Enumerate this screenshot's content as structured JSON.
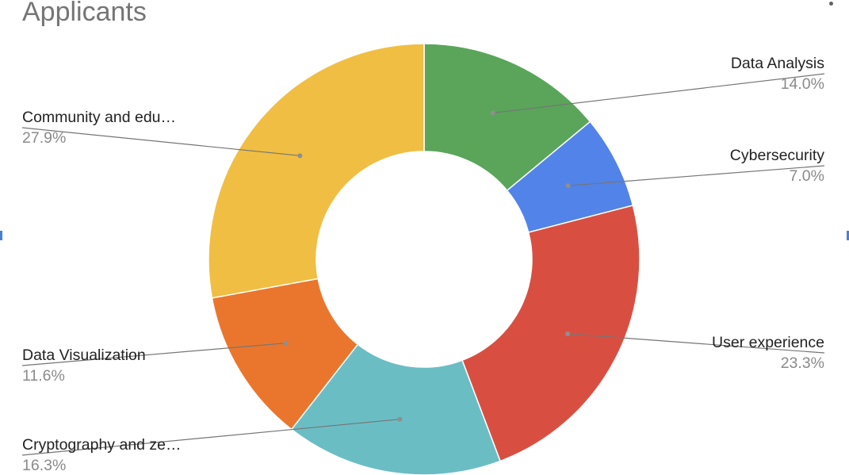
{
  "chart_data": {
    "type": "pie",
    "donut": true,
    "title": "Applicants",
    "unit": "%",
    "series": [
      {
        "name": "Data Analysis",
        "value": 14.0,
        "label": "Data Analysis",
        "value_text": "14.0%",
        "color": "#5aa55a"
      },
      {
        "name": "Cybersecurity",
        "value": 7.0,
        "label": "Cybersecurity",
        "value_text": "7.0%",
        "color": "#5283e8"
      },
      {
        "name": "User experience",
        "value": 23.3,
        "label": "User experience",
        "value_text": "23.3%",
        "color": "#d84f42"
      },
      {
        "name": "Cryptography and zero-knowledge",
        "value": 16.3,
        "label": "Cryptography and ze…",
        "value_text": "16.3%",
        "color": "#6bbdc4"
      },
      {
        "name": "Data Visualization",
        "value": 11.6,
        "label": "Data Visualization",
        "value_text": "11.6%",
        "color": "#ea762d"
      },
      {
        "name": "Community and education",
        "value": 27.9,
        "label": "Community and edu…",
        "value_text": "27.9%",
        "color": "#f0be42"
      }
    ],
    "start_angle_deg": 0,
    "direction": "clockwise",
    "legend": "leader-line labels outside slices"
  }
}
